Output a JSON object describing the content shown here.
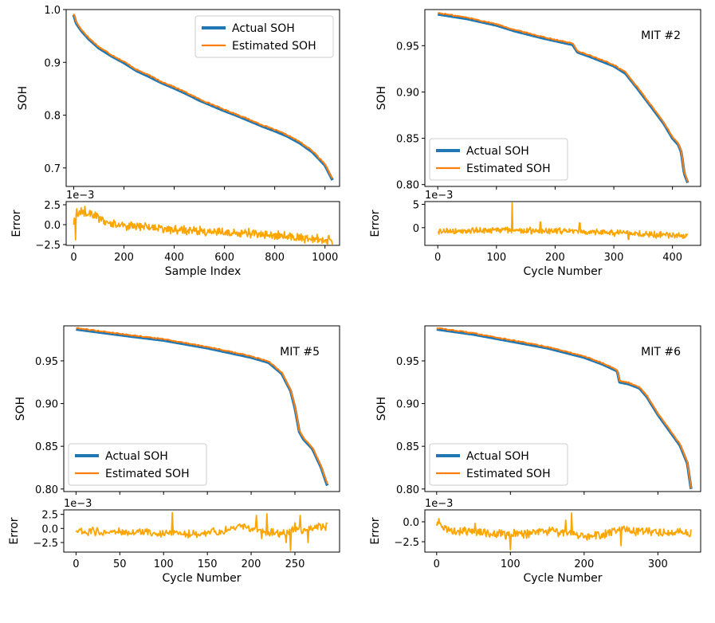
{
  "figure": {
    "type": "multi-panel line chart",
    "panels": 4
  },
  "colors": {
    "actual": "#1f77b4",
    "estimated": "#ff7f0e",
    "error": "#ffa500",
    "axis": "#000000"
  },
  "chart_data": [
    {
      "type": "line",
      "id": "p1",
      "annotation": "",
      "legend_loc": "top-right",
      "series": [
        {
          "name": "Actual SOH",
          "key": "actual"
        },
        {
          "name": "Estimated SOH",
          "key": "estimated"
        }
      ],
      "xlim": [
        -30,
        1058
      ],
      "ylim": [
        0.665,
        1.0
      ],
      "ylabel": "SOH",
      "yticks": [
        0.7,
        0.8,
        0.9,
        1.0
      ],
      "ytick_labels": [
        "0.7",
        "0.8",
        "0.9",
        "1.0"
      ],
      "soh_points": [
        [
          0,
          0.99
        ],
        [
          10,
          0.974
        ],
        [
          30,
          0.96
        ],
        [
          60,
          0.944
        ],
        [
          100,
          0.927
        ],
        [
          150,
          0.912
        ],
        [
          200,
          0.899
        ],
        [
          250,
          0.884
        ],
        [
          300,
          0.873
        ],
        [
          350,
          0.861
        ],
        [
          400,
          0.851
        ],
        [
          450,
          0.84
        ],
        [
          500,
          0.828
        ],
        [
          550,
          0.818
        ],
        [
          600,
          0.808
        ],
        [
          650,
          0.799
        ],
        [
          700,
          0.789
        ],
        [
          750,
          0.779
        ],
        [
          800,
          0.77
        ],
        [
          850,
          0.76
        ],
        [
          900,
          0.747
        ],
        [
          950,
          0.73
        ],
        [
          1000,
          0.705
        ],
        [
          1030,
          0.677
        ]
      ],
      "error": {
        "ylabel": "Error",
        "ylim": [
          -2.6,
          2.9
        ],
        "yticks": [
          -2.5,
          0.0,
          2.5
        ],
        "ytick_labels": [
          "−2.5",
          "0.0",
          "2.5"
        ],
        "exponent": "1e−3",
        "trend": [
          [
            0,
            0.2
          ],
          [
            20,
            1.7
          ],
          [
            60,
            1.4
          ],
          [
            150,
            0.1
          ],
          [
            400,
            -0.6
          ],
          [
            700,
            -1.1
          ],
          [
            1030,
            -2.0
          ]
        ],
        "noise": 0.7,
        "spikes": [
          [
            8,
            -1.9
          ],
          [
            12,
            2.0
          ],
          [
            45,
            2.3
          ],
          [
            995,
            -2.2
          ]
        ]
      },
      "xticks": [
        0,
        200,
        400,
        600,
        800,
        1000
      ],
      "xtick_labels": [
        "0",
        "200",
        "400",
        "600",
        "800",
        "1000"
      ],
      "xlabel": "Sample Index"
    },
    {
      "type": "line",
      "id": "p2",
      "annotation": "MIT #2",
      "legend_loc": "bottom-left",
      "series": [
        {
          "name": "Actual SOH",
          "key": "actual"
        },
        {
          "name": "Estimated SOH",
          "key": "estimated"
        }
      ],
      "xlim": [
        -22,
        448
      ],
      "ylim": [
        0.798,
        0.989
      ],
      "ylabel": "SOH",
      "yticks": [
        0.8,
        0.85,
        0.9,
        0.95
      ],
      "ytick_labels": [
        "0.80",
        "0.85",
        "0.90",
        "0.95"
      ],
      "soh_points": [
        [
          0,
          0.984
        ],
        [
          50,
          0.979
        ],
        [
          100,
          0.972
        ],
        [
          130,
          0.966
        ],
        [
          180,
          0.958
        ],
        [
          230,
          0.951
        ],
        [
          238,
          0.943
        ],
        [
          260,
          0.938
        ],
        [
          300,
          0.928
        ],
        [
          320,
          0.92
        ],
        [
          340,
          0.904
        ],
        [
          365,
          0.883
        ],
        [
          385,
          0.866
        ],
        [
          400,
          0.85
        ],
        [
          410,
          0.843
        ],
        [
          415,
          0.835
        ],
        [
          420,
          0.812
        ],
        [
          426,
          0.802
        ]
      ],
      "error": {
        "ylabel": "Error",
        "ylim": [
          -3.8,
          5.6
        ],
        "yticks": [
          0,
          5
        ],
        "ytick_labels": [
          "0",
          "5"
        ],
        "exponent": "1e−3",
        "trend": [
          [
            0,
            -0.7
          ],
          [
            120,
            -0.6
          ],
          [
            250,
            -0.8
          ],
          [
            426,
            -1.8
          ]
        ],
        "noise": 0.8,
        "spikes": [
          [
            127,
            5.3
          ],
          [
            128,
            -0.5
          ],
          [
            175,
            1.2
          ],
          [
            242,
            1.0
          ],
          [
            325,
            -2.5
          ],
          [
            420,
            -2.2
          ]
        ]
      },
      "xticks": [
        0,
        100,
        200,
        300,
        400
      ],
      "xtick_labels": [
        "0",
        "100",
        "200",
        "300",
        "400"
      ],
      "xlabel": "Cycle Number"
    },
    {
      "type": "line",
      "id": "p3",
      "annotation": "MIT #5",
      "legend_loc": "bottom-left",
      "series": [
        {
          "name": "Actual SOH",
          "key": "actual"
        },
        {
          "name": "Estimated SOH",
          "key": "estimated"
        }
      ],
      "xlim": [
        -14,
        301
      ],
      "ylim": [
        0.797,
        0.991
      ],
      "ylabel": "SOH",
      "yticks": [
        0.8,
        0.85,
        0.9,
        0.95
      ],
      "ytick_labels": [
        "0.80",
        "0.85",
        "0.90",
        "0.95"
      ],
      "soh_points": [
        [
          0,
          0.987
        ],
        [
          30,
          0.983
        ],
        [
          60,
          0.979
        ],
        [
          100,
          0.974
        ],
        [
          150,
          0.965
        ],
        [
          200,
          0.954
        ],
        [
          220,
          0.948
        ],
        [
          235,
          0.935
        ],
        [
          245,
          0.915
        ],
        [
          250,
          0.895
        ],
        [
          255,
          0.867
        ],
        [
          260,
          0.858
        ],
        [
          270,
          0.847
        ],
        [
          280,
          0.825
        ],
        [
          287,
          0.804
        ]
      ],
      "error": {
        "ylabel": "Error",
        "ylim": [
          -4.2,
          3.3
        ],
        "yticks": [
          -2.5,
          0.0,
          2.5
        ],
        "ytick_labels": [
          "−2.5",
          "0.0",
          "2.5"
        ],
        "exponent": "1e−3",
        "trend": [
          [
            0,
            -0.5
          ],
          [
            100,
            -0.8
          ],
          [
            150,
            -0.9
          ],
          [
            190,
            0.5
          ],
          [
            230,
            -1.0
          ],
          [
            270,
            0.0
          ],
          [
            287,
            0.5
          ]
        ],
        "noise": 0.9,
        "spikes": [
          [
            110,
            2.8
          ],
          [
            206,
            2.3
          ],
          [
            212,
            -1.8
          ],
          [
            218,
            2.6
          ],
          [
            240,
            -2.5
          ],
          [
            245,
            -3.9
          ],
          [
            250,
            1.0
          ],
          [
            256,
            2.3
          ],
          [
            265,
            -2.5
          ]
        ]
      },
      "xticks": [
        0,
        50,
        100,
        150,
        200,
        250
      ],
      "xtick_labels": [
        "0",
        "50",
        "100",
        "150",
        "200",
        "250"
      ],
      "xlabel": "Cycle Number"
    },
    {
      "type": "line",
      "id": "p4",
      "annotation": "MIT #6",
      "legend_loc": "bottom-left",
      "series": [
        {
          "name": "Actual SOH",
          "key": "actual"
        },
        {
          "name": "Estimated SOH",
          "key": "estimated"
        }
      ],
      "xlim": [
        -16,
        358
      ],
      "ylim": [
        0.797,
        0.991
      ],
      "ylabel": "SOH",
      "yticks": [
        0.8,
        0.85,
        0.9,
        0.95
      ],
      "ytick_labels": [
        "0.80",
        "0.85",
        "0.90",
        "0.95"
      ],
      "soh_points": [
        [
          0,
          0.987
        ],
        [
          50,
          0.981
        ],
        [
          100,
          0.973
        ],
        [
          150,
          0.965
        ],
        [
          200,
          0.954
        ],
        [
          225,
          0.946
        ],
        [
          245,
          0.938
        ],
        [
          248,
          0.925
        ],
        [
          260,
          0.923
        ],
        [
          275,
          0.918
        ],
        [
          285,
          0.908
        ],
        [
          300,
          0.887
        ],
        [
          315,
          0.869
        ],
        [
          330,
          0.851
        ],
        [
          340,
          0.83
        ],
        [
          345,
          0.8
        ]
      ],
      "error": {
        "ylabel": "Error",
        "ylim": [
          -3.8,
          1.5
        ],
        "yticks": [
          -2.5,
          0.0
        ],
        "ytick_labels": [
          "−2.5",
          "0.0"
        ],
        "exponent": "1e−3",
        "trend": [
          [
            0,
            -0.3
          ],
          [
            20,
            -1.0
          ],
          [
            100,
            -1.6
          ],
          [
            150,
            -1.2
          ],
          [
            180,
            -1.5
          ],
          [
            210,
            -1.9
          ],
          [
            250,
            -1.0
          ],
          [
            345,
            -1.5
          ]
        ],
        "noise": 0.7,
        "spikes": [
          [
            3,
            0.4
          ],
          [
            52,
            -0.2
          ],
          [
            100,
            -3.5
          ],
          [
            175,
            0.2
          ],
          [
            183,
            1.1
          ],
          [
            250,
            -3.0
          ]
        ]
      },
      "xticks": [
        0,
        100,
        200,
        300
      ],
      "xtick_labels": [
        "0",
        "100",
        "200",
        "300"
      ],
      "xlabel": "Cycle Number"
    }
  ]
}
